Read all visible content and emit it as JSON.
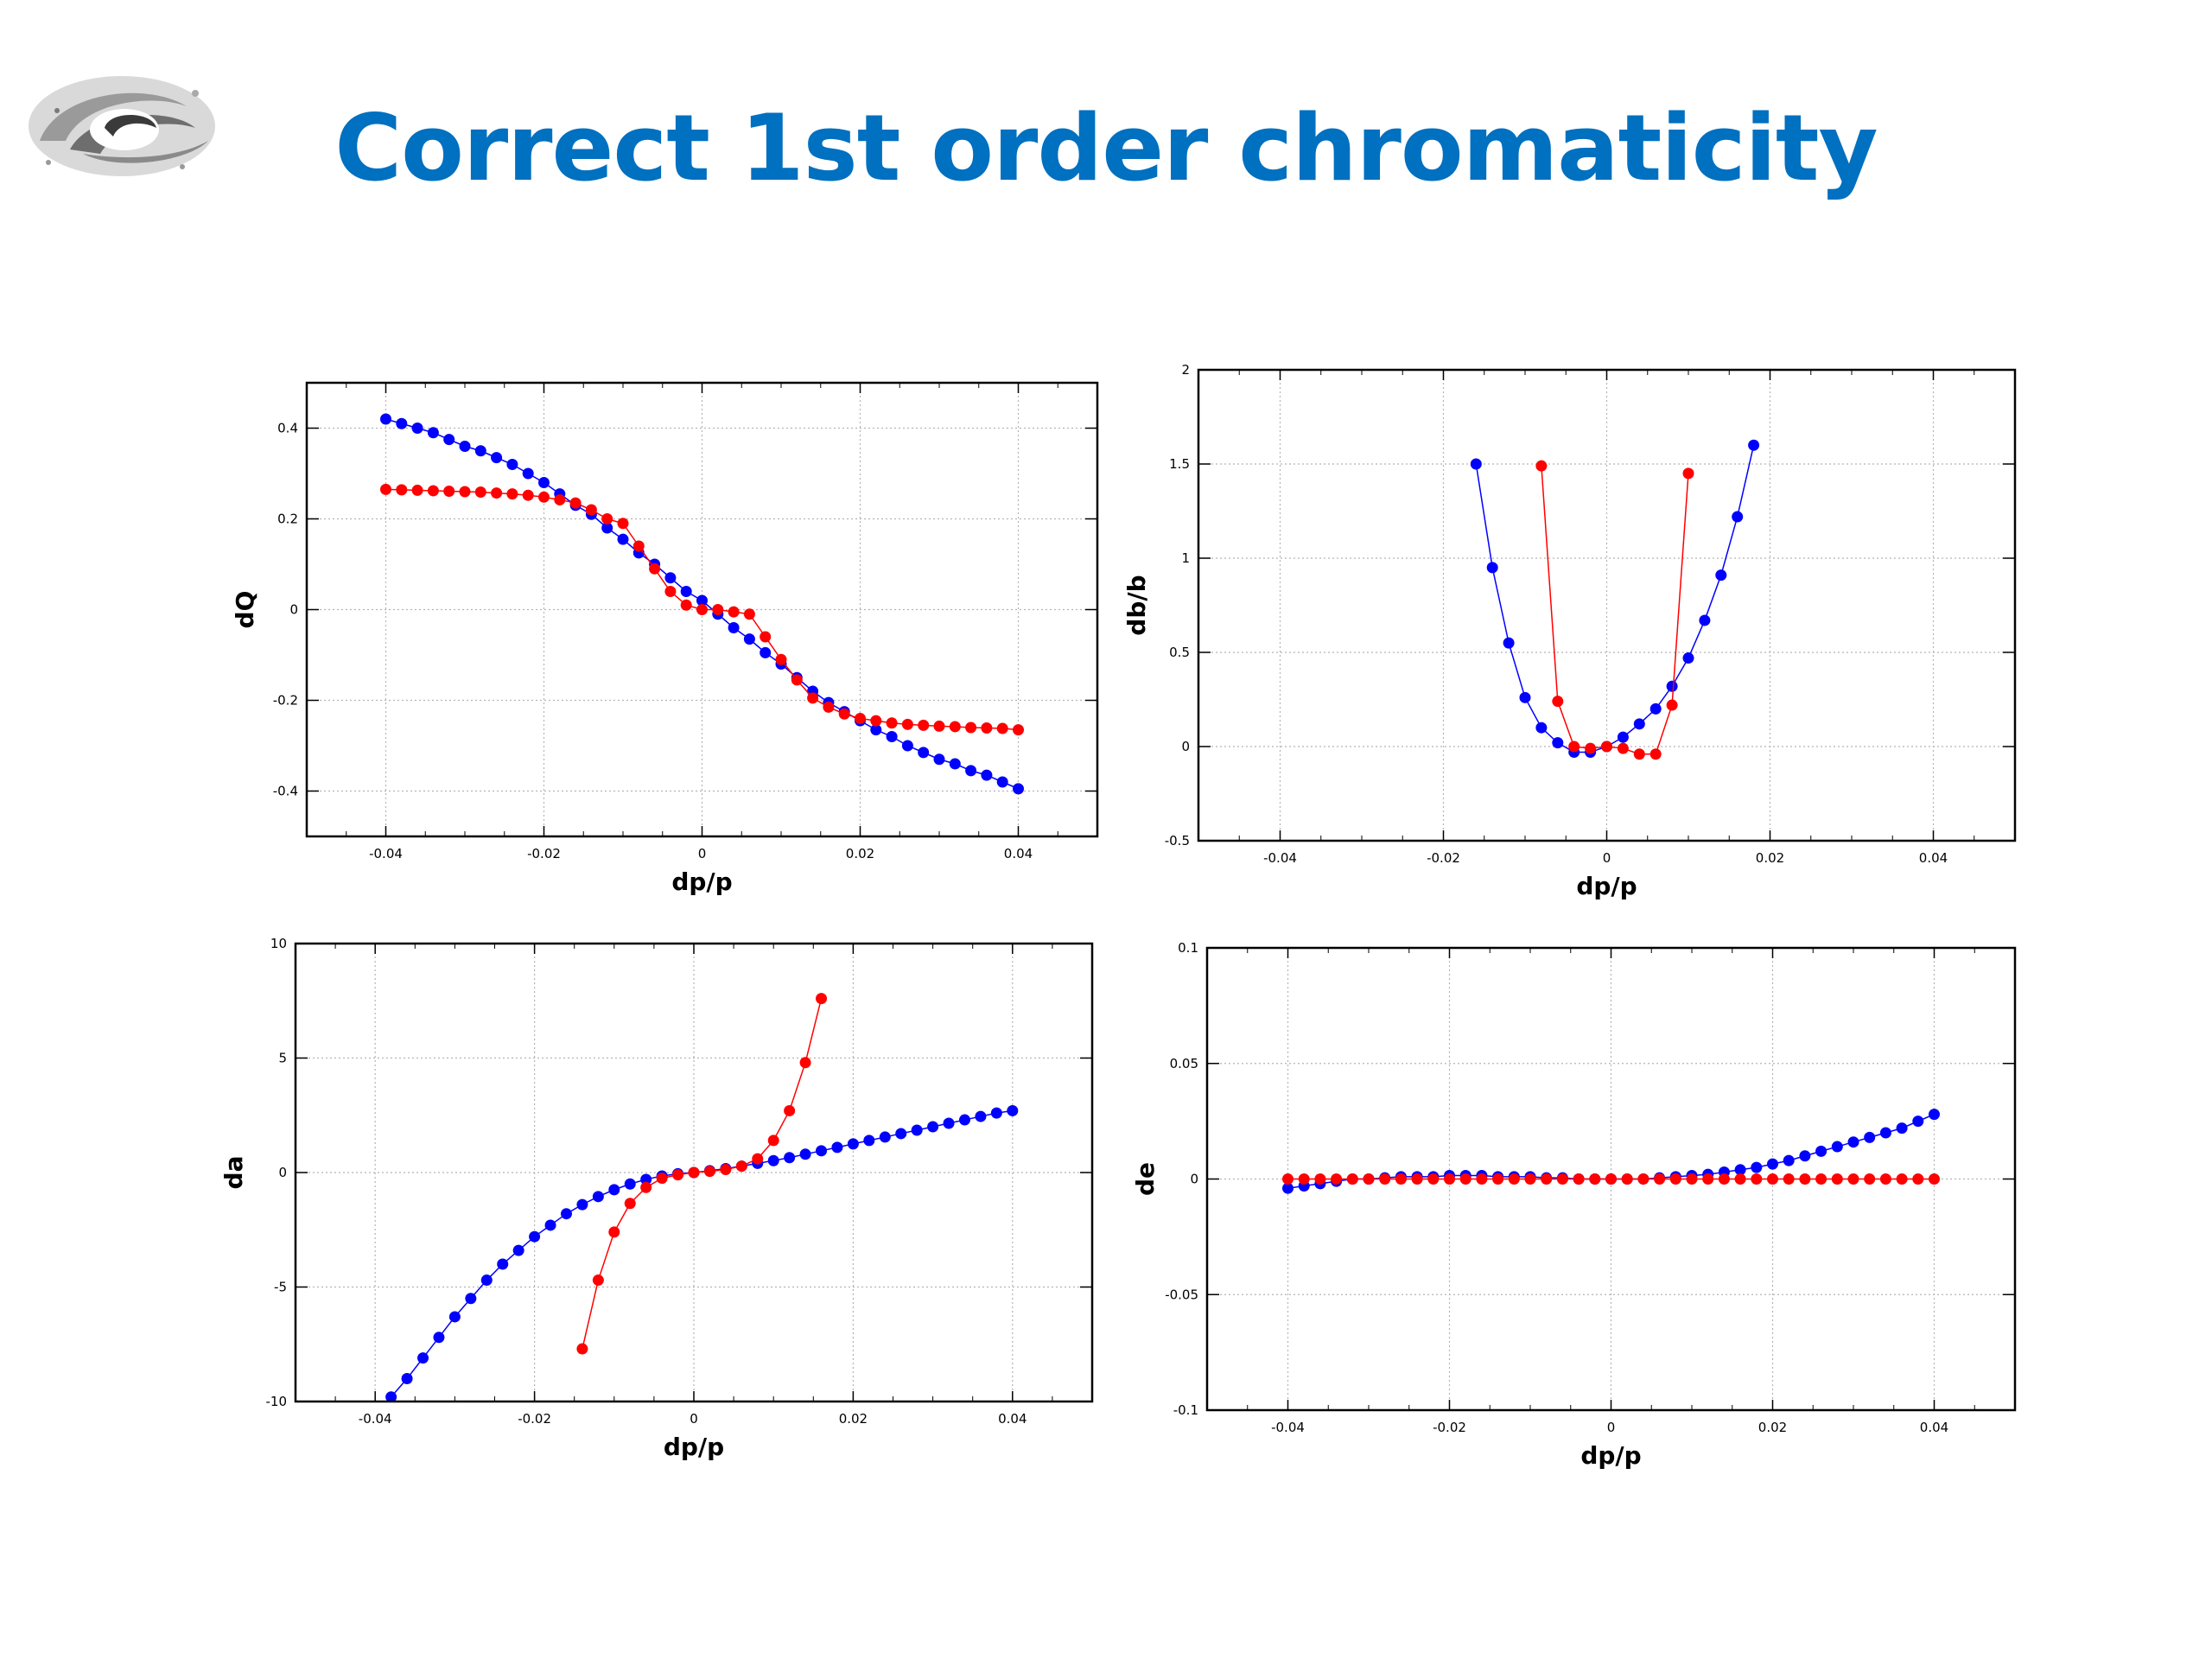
{
  "slide": {
    "title": "Correct 1st order chromaticity"
  },
  "colors": {
    "title": "#0070c0",
    "series_a": "#0000ff",
    "series_b": "#ff0000",
    "grid": "#b4b4b4"
  },
  "logo": {
    "icon": "spiral-galaxy-logo"
  },
  "chart_data": [
    {
      "type": "line",
      "xlabel": "dp/p",
      "ylabel": "dQ",
      "xlim": [
        -0.05,
        0.05
      ],
      "ylim": [
        -0.5,
        0.5
      ],
      "xticks": [
        "-0.04",
        "-0.02",
        "0",
        "0.02",
        "0.04"
      ],
      "yticks": [
        "-0.4",
        "-0.2",
        "0",
        "0.2",
        "0.4"
      ],
      "grid": true,
      "series": [
        {
          "color": "#0000ff",
          "x": [
            -0.04,
            -0.038,
            -0.036,
            -0.034,
            -0.032,
            -0.03,
            -0.028,
            -0.026,
            -0.024,
            -0.022,
            -0.02,
            -0.018,
            -0.016,
            -0.014,
            -0.012,
            -0.01,
            -0.008,
            -0.006,
            -0.004,
            -0.002,
            0,
            0.002,
            0.004,
            0.006,
            0.008,
            0.01,
            0.012,
            0.014,
            0.016,
            0.018,
            0.02,
            0.022,
            0.024,
            0.026,
            0.028,
            0.03,
            0.032,
            0.034,
            0.036,
            0.038,
            0.04
          ],
          "y": [
            0.42,
            0.41,
            0.4,
            0.39,
            0.375,
            0.36,
            0.35,
            0.335,
            0.32,
            0.3,
            0.28,
            0.255,
            0.23,
            0.21,
            0.18,
            0.155,
            0.125,
            0.1,
            0.07,
            0.04,
            0.02,
            -0.01,
            -0.04,
            -0.065,
            -0.095,
            -0.12,
            -0.15,
            -0.18,
            -0.205,
            -0.225,
            -0.245,
            -0.265,
            -0.28,
            -0.3,
            -0.315,
            -0.33,
            -0.34,
            -0.355,
            -0.365,
            -0.38,
            -0.395
          ]
        },
        {
          "color": "#ff0000",
          "x": [
            -0.04,
            -0.038,
            -0.036,
            -0.034,
            -0.032,
            -0.03,
            -0.028,
            -0.026,
            -0.024,
            -0.022,
            -0.02,
            -0.018,
            -0.016,
            -0.014,
            -0.012,
            -0.01,
            -0.008,
            -0.006,
            -0.004,
            -0.002,
            0,
            0.002,
            0.004,
            0.006,
            0.008,
            0.01,
            0.012,
            0.014,
            0.016,
            0.018,
            0.02,
            0.022,
            0.024,
            0.026,
            0.028,
            0.03,
            0.032,
            0.034,
            0.036,
            0.038,
            0.04
          ],
          "y": [
            0.265,
            0.264,
            0.263,
            0.262,
            0.261,
            0.26,
            0.259,
            0.257,
            0.255,
            0.252,
            0.248,
            0.242,
            0.235,
            0.22,
            0.2,
            0.19,
            0.14,
            0.09,
            0.04,
            0.01,
            0.0,
            0.0,
            -0.005,
            -0.01,
            -0.06,
            -0.11,
            -0.155,
            -0.195,
            -0.215,
            -0.23,
            -0.24,
            -0.245,
            -0.25,
            -0.253,
            -0.255,
            -0.257,
            -0.258,
            -0.26,
            -0.261,
            -0.262,
            -0.265
          ]
        }
      ]
    },
    {
      "type": "line",
      "xlabel": "dp/p",
      "ylabel": "db/b",
      "xlim": [
        -0.05,
        0.05
      ],
      "ylim": [
        -0.5,
        2
      ],
      "xticks": [
        "-0.04",
        "-0.02",
        "0",
        "0.02",
        "0.04"
      ],
      "yticks": [
        "-0.5",
        "0",
        "0.5",
        "1",
        "1.5",
        "2"
      ],
      "grid": true,
      "series": [
        {
          "color": "#0000ff",
          "x": [
            -0.016,
            -0.014,
            -0.012,
            -0.01,
            -0.008,
            -0.006,
            -0.004,
            -0.002,
            0,
            0.002,
            0.004,
            0.006,
            0.008,
            0.01,
            0.012,
            0.014,
            0.016,
            0.018
          ],
          "y": [
            1.5,
            0.95,
            0.55,
            0.26,
            0.1,
            0.02,
            -0.03,
            -0.03,
            0.0,
            0.05,
            0.12,
            0.2,
            0.32,
            0.47,
            0.67,
            0.91,
            1.22,
            1.6
          ]
        },
        {
          "color": "#ff0000",
          "x": [
            -0.008,
            -0.006,
            -0.004,
            -0.002,
            0,
            0.002,
            0.004,
            0.006,
            0.008,
            0.01
          ],
          "y": [
            1.49,
            0.24,
            0.0,
            -0.01,
            0.0,
            -0.01,
            -0.04,
            -0.04,
            0.22,
            1.45
          ]
        }
      ]
    },
    {
      "type": "line",
      "xlabel": "dp/p",
      "ylabel": "da",
      "xlim": [
        -0.05,
        0.05
      ],
      "ylim": [
        -10,
        10
      ],
      "xticks": [
        "-0.04",
        "-0.02",
        "0",
        "0.02",
        "0.04"
      ],
      "yticks": [
        "-10",
        "-5",
        "0",
        "5",
        "10"
      ],
      "grid": true,
      "series": [
        {
          "color": "#0000ff",
          "x": [
            -0.038,
            -0.036,
            -0.034,
            -0.032,
            -0.03,
            -0.028,
            -0.026,
            -0.024,
            -0.022,
            -0.02,
            -0.018,
            -0.016,
            -0.014,
            -0.012,
            -0.01,
            -0.008,
            -0.006,
            -0.004,
            -0.002,
            0,
            0.002,
            0.004,
            0.006,
            0.008,
            0.01,
            0.012,
            0.014,
            0.016,
            0.018,
            0.02,
            0.022,
            0.024,
            0.026,
            0.028,
            0.03,
            0.032,
            0.034,
            0.036,
            0.038,
            0.04
          ],
          "y": [
            -9.8,
            -9.0,
            -8.1,
            -7.2,
            -6.3,
            -5.5,
            -4.7,
            -4.0,
            -3.4,
            -2.8,
            -2.3,
            -1.8,
            -1.4,
            -1.05,
            -0.75,
            -0.5,
            -0.3,
            -0.15,
            -0.05,
            0.0,
            0.08,
            0.17,
            0.28,
            0.4,
            0.52,
            0.65,
            0.8,
            0.95,
            1.1,
            1.25,
            1.4,
            1.55,
            1.7,
            1.85,
            2.0,
            2.15,
            2.3,
            2.45,
            2.6,
            2.7
          ]
        },
        {
          "color": "#ff0000",
          "x": [
            -0.014,
            -0.012,
            -0.01,
            -0.008,
            -0.006,
            -0.004,
            -0.002,
            0,
            0.002,
            0.004,
            0.006,
            0.008,
            0.01,
            0.012,
            0.014,
            0.016
          ],
          "y": [
            -7.7,
            -4.7,
            -2.6,
            -1.35,
            -0.65,
            -0.25,
            -0.1,
            0.0,
            0.05,
            0.13,
            0.28,
            0.6,
            1.4,
            2.7,
            4.8,
            7.6
          ]
        }
      ]
    },
    {
      "type": "line",
      "xlabel": "dp/p",
      "ylabel": "de",
      "xlim": [
        -0.05,
        0.05
      ],
      "ylim": [
        -0.1,
        0.1
      ],
      "xticks": [
        "-0.04",
        "-0.02",
        "0",
        "0.02",
        "0.04"
      ],
      "yticks": [
        "-0.1",
        "-0.05",
        "0",
        "0.05",
        "0.1"
      ],
      "grid": true,
      "series": [
        {
          "color": "#0000ff",
          "x": [
            -0.04,
            -0.038,
            -0.036,
            -0.034,
            -0.032,
            -0.03,
            -0.028,
            -0.026,
            -0.024,
            -0.022,
            -0.02,
            -0.018,
            -0.016,
            -0.014,
            -0.012,
            -0.01,
            -0.008,
            -0.006,
            -0.004,
            -0.002,
            0,
            0.002,
            0.004,
            0.006,
            0.008,
            0.01,
            0.012,
            0.014,
            0.016,
            0.018,
            0.02,
            0.022,
            0.024,
            0.026,
            0.028,
            0.03,
            0.032,
            0.034,
            0.036,
            0.038,
            0.04
          ],
          "y": [
            -0.004,
            -0.003,
            -0.002,
            -0.001,
            0.0,
            0.0,
            0.0005,
            0.001,
            0.001,
            0.001,
            0.0015,
            0.0015,
            0.0015,
            0.001,
            0.001,
            0.001,
            0.0005,
            0.0005,
            0.0,
            0.0,
            0.0,
            0.0,
            0.0,
            0.0005,
            0.001,
            0.0015,
            0.002,
            0.003,
            0.004,
            0.005,
            0.0065,
            0.008,
            0.01,
            0.012,
            0.014,
            0.016,
            0.018,
            0.02,
            0.022,
            0.025,
            0.028
          ]
        },
        {
          "color": "#ff0000",
          "x": [
            -0.04,
            -0.038,
            -0.036,
            -0.034,
            -0.032,
            -0.03,
            -0.028,
            -0.026,
            -0.024,
            -0.022,
            -0.02,
            -0.018,
            -0.016,
            -0.014,
            -0.012,
            -0.01,
            -0.008,
            -0.006,
            -0.004,
            -0.002,
            0,
            0.002,
            0.004,
            0.006,
            0.008,
            0.01,
            0.012,
            0.014,
            0.016,
            0.018,
            0.02,
            0.022,
            0.024,
            0.026,
            0.028,
            0.03,
            0.032,
            0.034,
            0.036,
            0.038,
            0.04
          ],
          "y": [
            0,
            0,
            0,
            0,
            0,
            0,
            0,
            0,
            0,
            0,
            0,
            0,
            0,
            0,
            0,
            0,
            0,
            0,
            0,
            0,
            0,
            0,
            0,
            0,
            0,
            0,
            0,
            0,
            0,
            0,
            0,
            0,
            0,
            0,
            0,
            0,
            0,
            0,
            0,
            0,
            0
          ]
        }
      ]
    }
  ]
}
